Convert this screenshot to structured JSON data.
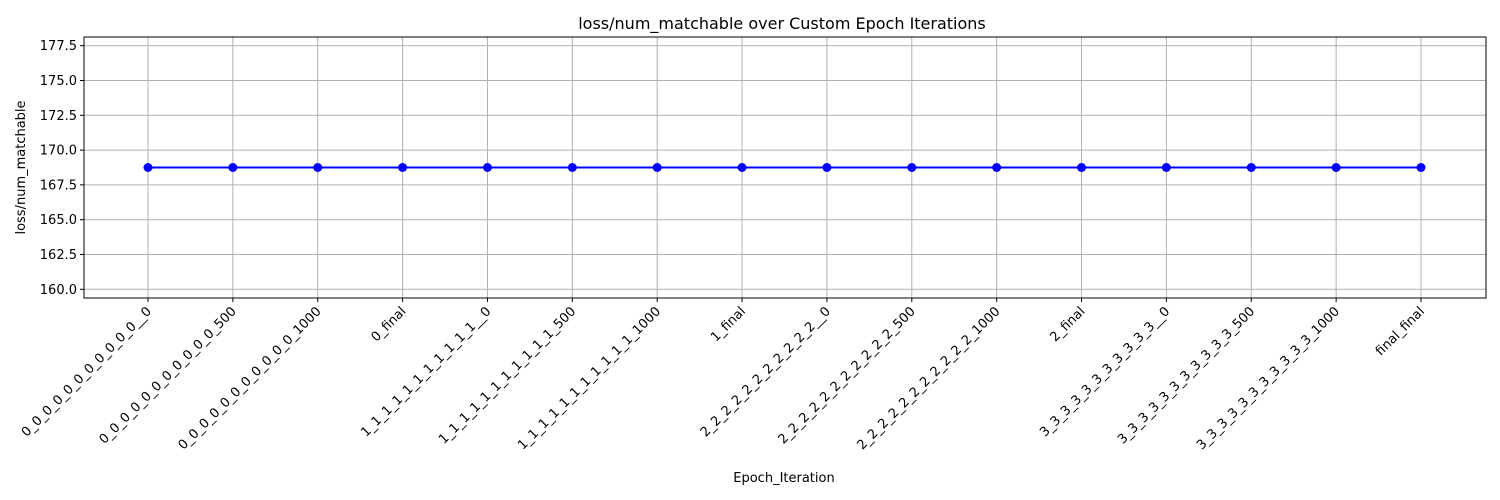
{
  "chart_data": {
    "type": "line",
    "title": "loss/num_matchable over Custom Epoch Iterations",
    "xlabel": "Epoch_Iteration",
    "ylabel": "loss/num_matchable",
    "categories": [
      "0_0_0_0_0_0_0_0_0_0_0__0",
      "0_0_0_0_0_0_0_0_0_0_0_500",
      "0_0_0_0_0_0_0_0_0_0_0_1000",
      "0_final",
      "1_1_1_1_1_1_1_1_1_1_1__0",
      "1_1_1_1_1_1_1_1_1_1_1_500",
      "1_1_1_1_1_1_1_1_1_1_1_1000",
      "1_final",
      "2_2_2_2_2_2_2_2_2_2_2__0",
      "2_2_2_2_2_2_2_2_2_2_2_500",
      "2_2_2_2_2_2_2_2_2_2_2_1000",
      "2_final",
      "3_3_3_3_3_3_3_3_3_3_3__0",
      "3_3_3_3_3_3_3_3_3_3_3_500",
      "3_3_3_3_3_3_3_3_3_3_3_1000",
      "final_final"
    ],
    "values": [
      168.75,
      168.75,
      168.75,
      168.75,
      168.75,
      168.75,
      168.75,
      168.75,
      168.75,
      168.75,
      168.75,
      168.75,
      168.75,
      168.75,
      168.75,
      168.75
    ],
    "yticks": [
      "160.0",
      "162.5",
      "165.0",
      "167.5",
      "170.0",
      "172.5",
      "175.0",
      "177.5"
    ],
    "ylim": [
      159.375,
      178.125
    ],
    "grid": true,
    "line_color": "#0000ff",
    "marker": "circle"
  }
}
